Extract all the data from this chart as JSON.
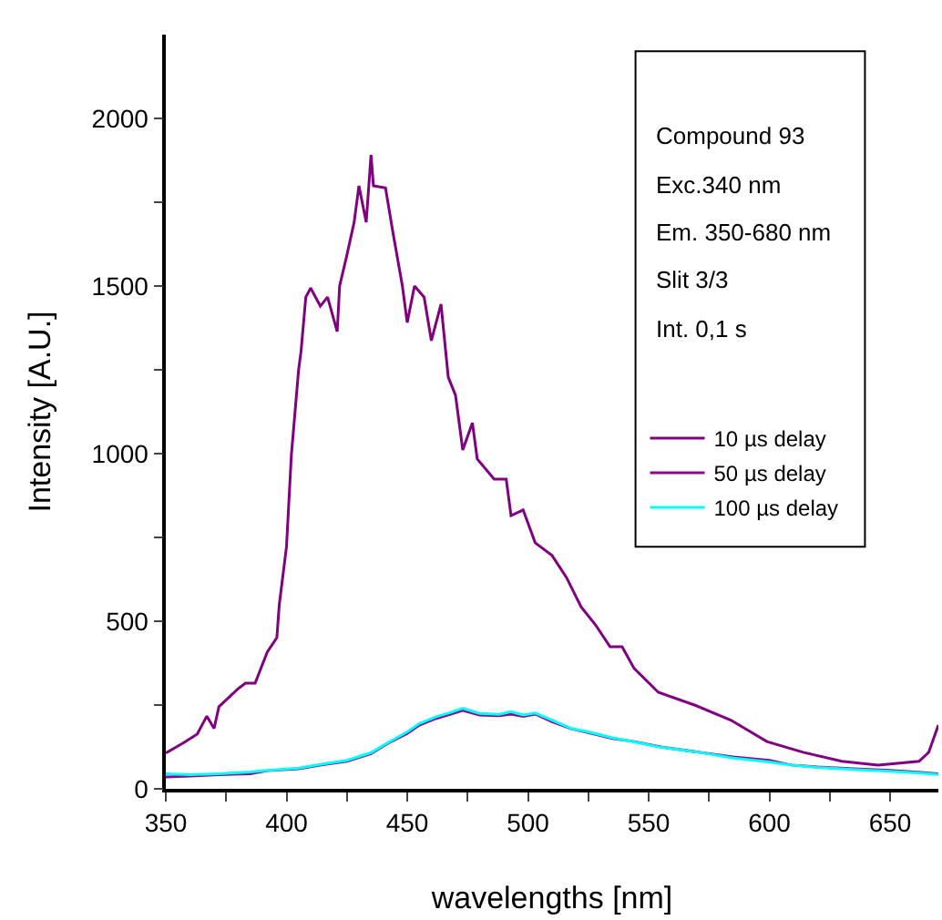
{
  "chart_data": {
    "type": "line",
    "xlabel": "wavelengths [nm]",
    "ylabel": "Intensity [A.U.]",
    "annotations": [
      "Compound 93",
      "Exc.340 nm",
      "Em. 350-680 nm",
      "Slit 3/3",
      "Int. 0,1 s"
    ],
    "xlim": [
      350,
      670
    ],
    "ylim": [
      0,
      2250
    ],
    "xticks": [
      350,
      {
        "value": 375,
        "label": null
      },
      400,
      {
        "value": 425,
        "label": null
      },
      450,
      {
        "value": 475,
        "label": null
      },
      500,
      {
        "value": 525,
        "label": null
      },
      550,
      {
        "value": 575,
        "label": null
      },
      600,
      {
        "value": 625,
        "label": null
      },
      650
    ],
    "yticks": [
      0,
      {
        "value": 250,
        "label": null
      },
      500,
      {
        "value": 750,
        "label": null
      },
      1000,
      {
        "value": 1250,
        "label": null
      },
      1500,
      {
        "value": 1750,
        "label": null
      },
      2000
    ],
    "legend": "right",
    "marker": "none",
    "line_style": "solid",
    "series": [
      {
        "name": "10 µs delay",
        "color": "#800080",
        "x": [
          350,
          357,
          363,
          367,
          370,
          372,
          380,
          383,
          387,
          392,
          396,
          397,
          400,
          402,
          405,
          406,
          408,
          410,
          414,
          417,
          421,
          422,
          425,
          428,
          430,
          433,
          435,
          436,
          441,
          444,
          448,
          450,
          453,
          457,
          460,
          464,
          467,
          470,
          473,
          477,
          479,
          486,
          491,
          493,
          498,
          503,
          510,
          516,
          522,
          528,
          534,
          539,
          544,
          554,
          569,
          584,
          599,
          614,
          630,
          645,
          662,
          666,
          670
        ],
        "values": [
          107,
          136,
          163,
          217,
          180,
          245,
          299,
          315,
          315,
          408,
          451,
          549,
          723,
          995,
          1250,
          1304,
          1467,
          1494,
          1440,
          1467,
          1364,
          1500,
          1592,
          1690,
          1799,
          1690,
          1891,
          1799,
          1793,
          1663,
          1500,
          1391,
          1500,
          1467,
          1337,
          1446,
          1228,
          1174,
          1011,
          1092,
          984,
          924,
          924,
          815,
          832,
          734,
          696,
          630,
          543,
          489,
          424,
          424,
          359,
          288,
          250,
          205,
          141,
          109,
          82,
          71,
          82,
          109,
          190
        ]
      },
      {
        "name": "50 µs delay",
        "color": "#8b0a8b",
        "x": [
          350,
          360,
          372,
          385,
          392,
          405,
          415,
          425,
          435,
          442,
          450,
          455,
          462,
          468,
          473,
          480,
          488,
          493,
          498,
          503,
          510,
          518,
          525,
          535,
          544,
          555,
          571,
          585,
          600,
          609,
          620,
          635,
          650,
          660,
          670
        ],
        "values": [
          35,
          38,
          42,
          45,
          54,
          60,
          72,
          82,
          105,
          136,
          165,
          190,
          210,
          223,
          234,
          220,
          218,
          223,
          216,
          223,
          200,
          179,
          168,
          150,
          141,
          125,
          109,
          95,
          85,
          71,
          65,
          60,
          55,
          50,
          45
        ]
      },
      {
        "name": "100 µs delay",
        "color": "#00ffff",
        "x": [
          350,
          360,
          372,
          385,
          392,
          405,
          415,
          425,
          435,
          442,
          450,
          455,
          462,
          468,
          473,
          480,
          488,
          493,
          498,
          503,
          510,
          518,
          525,
          535,
          544,
          555,
          571,
          585,
          600,
          609,
          620,
          635,
          650,
          660,
          670
        ],
        "values": [
          45,
          42,
          45,
          50,
          55,
          62,
          74,
          85,
          108,
          138,
          170,
          195,
          215,
          228,
          240,
          225,
          222,
          230,
          220,
          226,
          205,
          180,
          170,
          152,
          140,
          124,
          109,
          92,
          80,
          71,
          64,
          58,
          52,
          48,
          43
        ]
      }
    ]
  }
}
